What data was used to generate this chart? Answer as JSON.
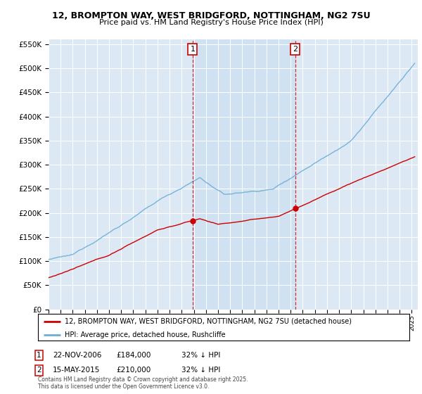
{
  "title": "12, BROMPTON WAY, WEST BRIDGFORD, NOTTINGHAM, NG2 7SU",
  "subtitle": "Price paid vs. HM Land Registry's House Price Index (HPI)",
  "legend_label_red": "12, BROMPTON WAY, WEST BRIDGFORD, NOTTINGHAM, NG2 7SU (detached house)",
  "legend_label_blue": "HPI: Average price, detached house, Rushcliffe",
  "annotation1_date": "22-NOV-2006",
  "annotation1_price": "£184,000",
  "annotation1_hpi": "32% ↓ HPI",
  "annotation2_date": "15-MAY-2015",
  "annotation2_price": "£210,000",
  "annotation2_hpi": "32% ↓ HPI",
  "copyright": "Contains HM Land Registry data © Crown copyright and database right 2025.\nThis data is licensed under the Open Government Licence v3.0.",
  "sale1_year": 2006.9,
  "sale2_year": 2015.37,
  "ylim_min": 0,
  "ylim_max": 560000,
  "xlim_min": 1995.0,
  "xlim_max": 2025.5,
  "plot_bg_color": "#dce9f5",
  "shade_color": "#cce0f0",
  "red_line_color": "#cc0000",
  "blue_line_color": "#6baed6",
  "sale1_price": 184000,
  "sale2_price": 210000,
  "yticks": [
    0,
    50000,
    100000,
    150000,
    200000,
    250000,
    300000,
    350000,
    400000,
    450000,
    500000,
    550000
  ]
}
